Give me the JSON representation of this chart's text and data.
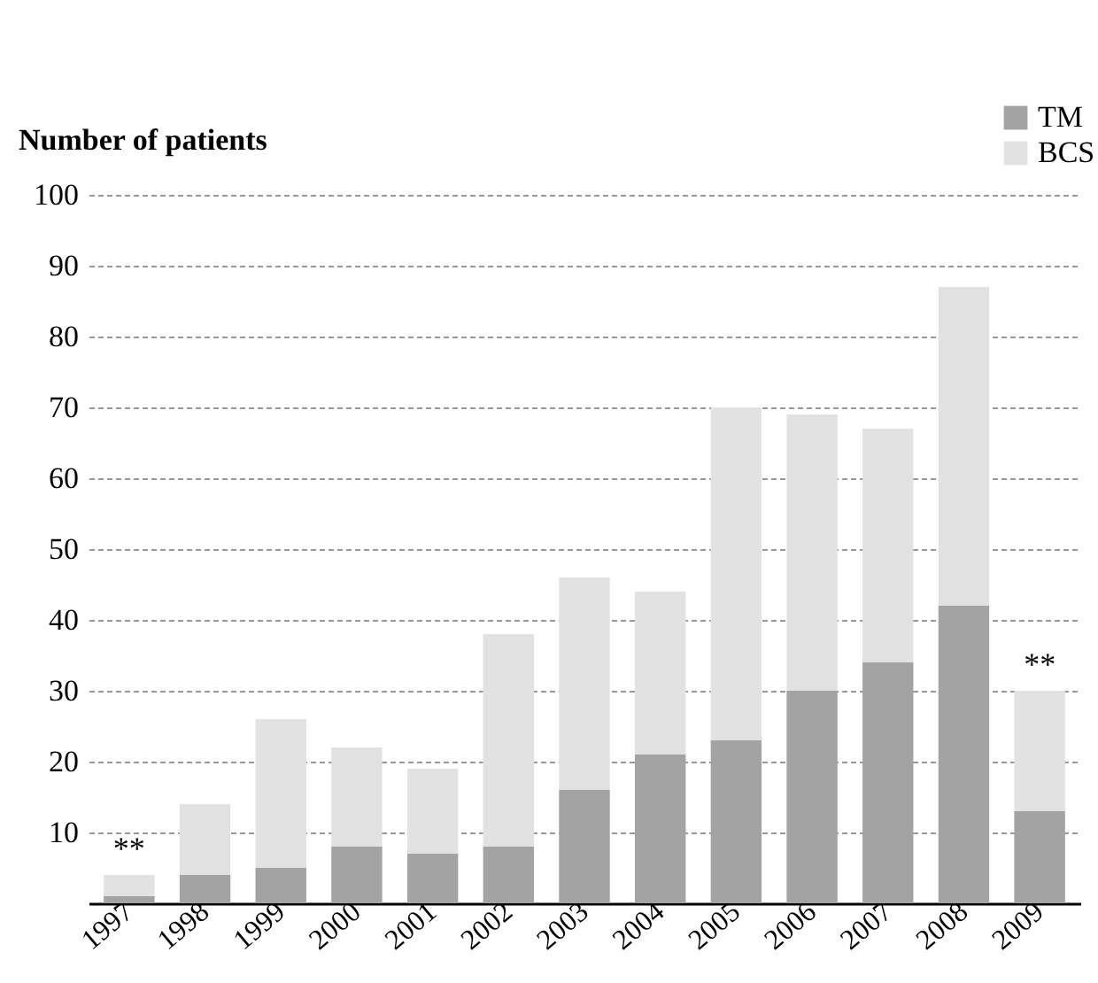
{
  "chart_data": {
    "type": "bar",
    "stacked": true,
    "ylabel": "Number of patients",
    "categories": [
      "1997",
      "1998",
      "1999",
      "2000",
      "2001",
      "2002",
      "2003",
      "2004",
      "2005",
      "2006",
      "2007",
      "2008",
      "2009"
    ],
    "series": [
      {
        "name": "TM",
        "color": "#a3a3a3",
        "values": [
          1,
          4,
          5,
          8,
          7,
          8,
          16,
          21,
          23,
          30,
          34,
          42,
          13
        ]
      },
      {
        "name": "BCS",
        "color": "#e2e2e2",
        "values": [
          3,
          10,
          21,
          14,
          12,
          30,
          30,
          23,
          47,
          39,
          33,
          45,
          17
        ]
      }
    ],
    "ylim": [
      0,
      100
    ],
    "yticks": [
      10,
      20,
      30,
      40,
      50,
      60,
      70,
      80,
      90,
      100
    ],
    "grid": "y",
    "legend": "top right",
    "annotations": [
      {
        "text": "**",
        "x": "1997",
        "y": 4
      },
      {
        "text": "**",
        "x": "2009",
        "y": 30
      }
    ]
  }
}
